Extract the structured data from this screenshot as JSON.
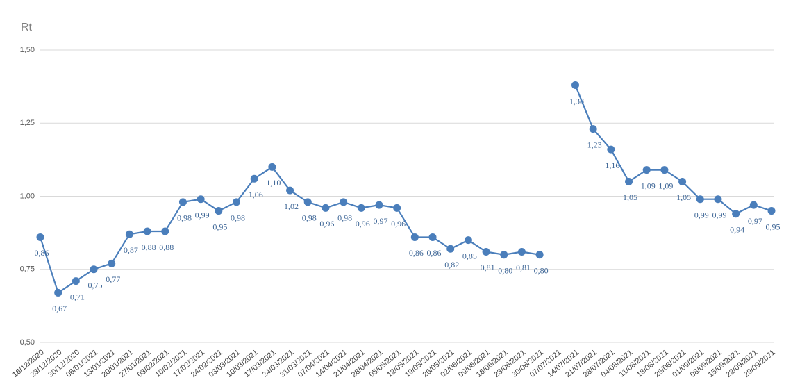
{
  "chart_data": {
    "type": "line",
    "title": "Rt",
    "categories": [
      "16/12/2020",
      "23/12/2020",
      "30/12/2020",
      "06/01/2021",
      "13/01/2021",
      "20/01/2021",
      "27/01/2021",
      "03/02/2021",
      "10/02/2021",
      "17/02/2021",
      "24/02/2021",
      "03/03/2021",
      "10/03/2021",
      "17/03/2021",
      "24/03/2021",
      "31/03/2021",
      "07/04/2021",
      "14/04/2021",
      "21/04/2021",
      "28/04/2021",
      "05/05/2021",
      "12/05/2021",
      "19/05/2021",
      "26/05/2021",
      "02/06/2021",
      "09/06/2021",
      "16/06/2021",
      "23/06/2021",
      "30/06/2021",
      "07/07/2021",
      "14/07/2021",
      "21/07/2021",
      "28/07/2021",
      "04/08/2021",
      "11/08/2021",
      "18/08/2021",
      "25/08/2021",
      "01/09/2021",
      "08/09/2021",
      "15/09/2021",
      "22/09/2021",
      "29/09/2021"
    ],
    "series": [
      {
        "color": "#4a7ebb",
        "values": [
          0.86,
          0.67,
          0.71,
          0.75,
          0.77,
          0.87,
          0.88,
          0.88,
          0.98,
          0.99,
          0.95,
          0.98,
          1.06,
          1.1,
          1.02,
          0.98,
          0.96,
          0.98,
          0.96,
          0.97,
          0.96,
          0.86,
          0.86,
          0.82,
          0.85,
          0.81,
          0.8,
          0.81,
          0.8,
          null,
          1.38,
          1.23,
          1.16,
          1.05,
          1.09,
          1.09,
          1.05,
          0.99,
          0.99,
          0.94,
          0.97,
          0.95
        ],
        "value_labels": [
          "0,86",
          "0,67",
          "0,71",
          "0,75",
          "0,77",
          "0,87",
          "0,88",
          "0,88",
          "0,98",
          "0,99",
          "0,95",
          "0,98",
          "1,06",
          "1,10",
          "1,02",
          "0,98",
          "0,96",
          "0,98",
          "0,96",
          "0,97",
          "0,96",
          "0,86",
          "0,86",
          "0,82",
          "0,85",
          "0,81",
          "0,80",
          "0,81",
          "0,80",
          null,
          "1,38",
          "1,23",
          "1,16",
          "1,05",
          "1,09",
          "1,09",
          "1,05",
          "0,99",
          "0,99",
          "0,94",
          "0,97",
          "0,95"
        ]
      }
    ],
    "ylim": [
      0.5,
      1.5
    ],
    "yticks": [
      {
        "value": 0.5,
        "label": "0,50"
      },
      {
        "value": 0.75,
        "label": "0,75"
      },
      {
        "value": 1.0,
        "label": "1,00"
      },
      {
        "value": 1.25,
        "label": "1,25"
      },
      {
        "value": 1.5,
        "label": "1,50"
      }
    ],
    "grid": true
  }
}
